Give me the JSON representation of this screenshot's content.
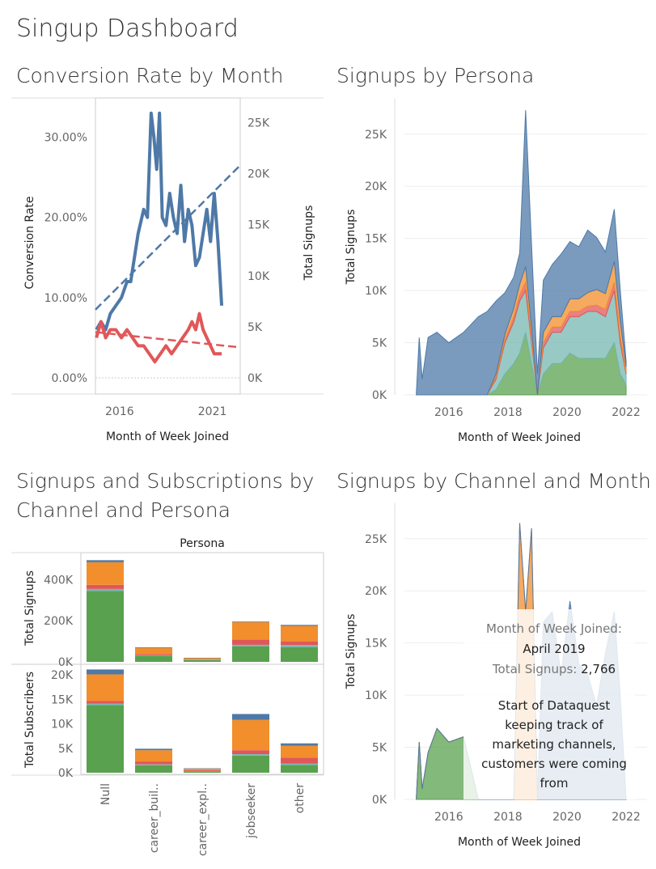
{
  "dashboard": {
    "title": "Singup Dashboard"
  },
  "panels": {
    "conversion": "Conversion Rate by Month",
    "persona": "Signups by Persona",
    "channel_persona": "Signups and Subscriptions by Channel and Persona",
    "channel_month": "Signups by Channel and Month"
  },
  "colors": {
    "blue": "#4e79a7",
    "orange": "#f28e2b",
    "red": "#e15759",
    "teal": "#76b7b2",
    "green": "#59a14f",
    "grey_line": "#bbbbbb"
  },
  "chart_data": [
    {
      "id": "conversion",
      "type": "line",
      "title": "Conversion Rate by Month",
      "xlabel": "Month of Week Joined",
      "ylabel_left": "Conversion Rate",
      "ylabel_right": "Total Signups",
      "x_ticks": [
        "2016",
        "2021"
      ],
      "y_left_ticks": [
        "0.00%",
        "10.00%",
        "20.00%",
        "30.00%"
      ],
      "y_right_ticks": [
        "0K",
        "5K",
        "10K",
        "15K",
        "20K",
        "25K"
      ],
      "ylim_left": [
        0,
        0.35
      ],
      "ylim_right": [
        0,
        27500
      ],
      "xlim": [
        2015.0,
        2022.8
      ],
      "series": [
        {
          "color": "#4e79a7",
          "axis": "left",
          "x": [
            2015.05,
            2015.3,
            2015.55,
            2015.8,
            2016.1,
            2016.4,
            2016.7,
            2016.9,
            2017.1,
            2017.3,
            2017.6,
            2017.8,
            2018.0,
            2018.15,
            2018.3,
            2018.45,
            2018.6,
            2018.8,
            2019.0,
            2019.2,
            2019.4,
            2019.6,
            2019.8,
            2020.0,
            2020.2,
            2020.4,
            2020.6,
            2020.8,
            2021.0,
            2021.2,
            2021.4,
            2021.6,
            2021.8
          ],
          "y": [
            0.06,
            0.07,
            0.06,
            0.08,
            0.09,
            0.1,
            0.12,
            0.12,
            0.15,
            0.18,
            0.21,
            0.2,
            0.33,
            0.3,
            0.26,
            0.33,
            0.2,
            0.19,
            0.23,
            0.2,
            0.18,
            0.24,
            0.17,
            0.21,
            0.19,
            0.14,
            0.15,
            0.18,
            0.21,
            0.17,
            0.23,
            0.17,
            0.09
          ]
        },
        {
          "color": "#e15759",
          "axis": "left",
          "x": [
            2015.05,
            2015.3,
            2015.55,
            2015.8,
            2016.1,
            2016.4,
            2016.7,
            2017.0,
            2017.3,
            2017.6,
            2017.9,
            2018.2,
            2018.5,
            2018.8,
            2019.1,
            2019.4,
            2019.7,
            2020.0,
            2020.2,
            2020.4,
            2020.6,
            2020.8,
            2021.0,
            2021.2,
            2021.4,
            2021.6,
            2021.8
          ],
          "y": [
            0.05,
            0.07,
            0.05,
            0.06,
            0.06,
            0.05,
            0.06,
            0.05,
            0.04,
            0.04,
            0.03,
            0.02,
            0.03,
            0.04,
            0.03,
            0.04,
            0.05,
            0.06,
            0.07,
            0.06,
            0.08,
            0.06,
            0.05,
            0.04,
            0.03,
            0.03,
            0.03
          ]
        }
      ],
      "trend_lines": [
        {
          "color": "#4e79a7",
          "from": [
            2015.0,
            0.085
          ],
          "to": [
            2022.8,
            0.265
          ]
        },
        {
          "color": "#e15759",
          "from": [
            2015.0,
            0.057
          ],
          "to": [
            2022.8,
            0.038
          ]
        }
      ]
    },
    {
      "id": "persona",
      "type": "area",
      "title": "Signups by Persona",
      "xlabel": "Month of Week Joined",
      "ylabel": "Total Signups",
      "x_ticks": [
        "2016",
        "2018",
        "2020",
        "2022"
      ],
      "y_ticks": [
        "0K",
        "5K",
        "10K",
        "15K",
        "20K",
        "25K"
      ],
      "ylim": [
        0,
        27000
      ],
      "xlim": [
        2014.5,
        2022.3
      ],
      "x": [
        2014.9,
        2015.0,
        2015.1,
        2015.3,
        2015.6,
        2016.0,
        2016.5,
        2017.0,
        2017.3,
        2017.6,
        2017.9,
        2018.2,
        2018.4,
        2018.6,
        2018.8,
        2019.0,
        2019.2,
        2019.5,
        2019.8,
        2020.1,
        2020.4,
        2020.7,
        2021.0,
        2021.3,
        2021.6,
        2021.8,
        2022.0
      ],
      "series": [
        {
          "color": "#59a14f",
          "values": [
            0,
            0,
            0,
            0,
            0,
            0,
            0,
            0,
            0,
            500,
            2000,
            3000,
            4000,
            6000,
            3000,
            0,
            2000,
            3000,
            3000,
            4000,
            3500,
            3500,
            3500,
            3500,
            5000,
            2000,
            1000
          ]
        },
        {
          "color": "#76b7b2",
          "values": [
            0,
            0,
            0,
            0,
            0,
            0,
            0,
            0,
            0,
            1000,
            3000,
            4000,
            5000,
            4000,
            2000,
            0,
            2500,
            3000,
            3000,
            3500,
            4000,
            4500,
            4500,
            4000,
            5000,
            3000,
            1000
          ]
        },
        {
          "color": "#e15759",
          "values": [
            0,
            0,
            0,
            0,
            0,
            0,
            0,
            0,
            0,
            200,
            300,
            500,
            600,
            800,
            500,
            0,
            500,
            500,
            500,
            500,
            500,
            500,
            600,
            700,
            800,
            600,
            200
          ]
        },
        {
          "color": "#f28e2b",
          "values": [
            0,
            0,
            0,
            0,
            0,
            0,
            0,
            0,
            0,
            300,
            500,
            800,
            1000,
            1500,
            900,
            0,
            1000,
            1000,
            1000,
            1200,
            1200,
            1300,
            1500,
            1500,
            2000,
            1500,
            500
          ]
        },
        {
          "color": "#4e79a7",
          "values": [
            0,
            5500,
            1500,
            5500,
            6000,
            5000,
            6000,
            7500,
            8000,
            7000,
            4000,
            3000,
            3000,
            15000,
            8000,
            2000,
            5000,
            5000,
            6000,
            5500,
            5000,
            6000,
            5000,
            4000,
            5000,
            3000,
            500
          ]
        }
      ]
    },
    {
      "id": "channel_persona",
      "type": "bar",
      "title": "Signups and Subscriptions by Channel and Persona",
      "column_header": "Persona",
      "categories": [
        "Null",
        "career_buil..",
        "career_expl..",
        "jobseeker",
        "other"
      ],
      "rows": [
        {
          "ylabel": "Total Signups",
          "y_ticks": [
            "0K",
            "200K",
            "400K"
          ],
          "ylim": [
            0,
            520000
          ],
          "stack_colors": [
            "#59a14f",
            "#76b7b2",
            "#e15759",
            "#f28e2b",
            "#4e79a7"
          ],
          "stacks": [
            [
              345000,
              10000,
              20000,
              110000,
              10000
            ],
            [
              30000,
              2000,
              6000,
              30000,
              3000
            ],
            [
              8000,
              1000,
              2000,
              7000,
              2000
            ],
            [
              75000,
              8000,
              25000,
              85000,
              3000
            ],
            [
              72000,
              10000,
              18000,
              75000,
              5000
            ]
          ]
        },
        {
          "ylabel": "Total Subscribers",
          "y_ticks": [
            "0K",
            "5K",
            "10K",
            "15K",
            "20K"
          ],
          "ylim": [
            0,
            21500
          ],
          "stack_colors": [
            "#59a14f",
            "#76b7b2",
            "#e15759",
            "#f28e2b",
            "#4e79a7"
          ],
          "stacks": [
            [
              13800,
              300,
              600,
              5400,
              1000
            ],
            [
              1500,
              200,
              600,
              2300,
              300
            ],
            [
              300,
              50,
              150,
              300,
              100
            ],
            [
              3500,
              300,
              800,
              6200,
              1200
            ],
            [
              1600,
              300,
              1200,
              2400,
              500
            ]
          ]
        }
      ]
    },
    {
      "id": "channel_month",
      "type": "area",
      "title": "Signups by Channel and Month",
      "xlabel": "Month of Week Joined",
      "ylabel": "Total Signups",
      "x_ticks": [
        "2016",
        "2018",
        "2020",
        "2022"
      ],
      "y_ticks": [
        "0K",
        "5K",
        "10K",
        "15K",
        "20K",
        "25K"
      ],
      "ylim": [
        0,
        27000
      ],
      "xlim": [
        2014.5,
        2022.3
      ],
      "x": [
        2014.9,
        2015.0,
        2015.1,
        2015.3,
        2015.6,
        2016.0,
        2016.5,
        2017.0,
        2017.3,
        2017.6,
        2017.9,
        2018.2,
        2018.4,
        2018.6,
        2018.8,
        2019.0,
        2019.2,
        2019.5,
        2019.8,
        2020.1,
        2020.4,
        2020.7,
        2021.0,
        2021.3,
        2021.6,
        2021.8,
        2022.0
      ],
      "series": [
        {
          "color": "#59a14f",
          "values": [
            0,
            5500,
            1000,
            4500,
            6800,
            5500,
            6000,
            0,
            0,
            0,
            0,
            0,
            0,
            0,
            0,
            0,
            0,
            0,
            0,
            0,
            0,
            0,
            0,
            0,
            0,
            0,
            0
          ]
        },
        {
          "color": "#f28e2b",
          "values": [
            0,
            0,
            0,
            0,
            0,
            0,
            0,
            0,
            0,
            0,
            0,
            0,
            26500,
            18000,
            26000,
            0,
            0,
            0,
            0,
            0,
            0,
            0,
            0,
            0,
            0,
            0,
            0
          ]
        },
        {
          "color": "#4e79a7",
          "values": [
            0,
            0,
            0,
            0,
            0,
            0,
            0,
            0,
            0,
            0,
            0,
            0,
            0,
            0,
            0,
            0,
            17000,
            18000,
            12000,
            19000,
            13000,
            12000,
            9000,
            14000,
            18000,
            10000,
            0
          ]
        }
      ],
      "tooltip": {
        "line1_label": "Month of Week Joined:",
        "line1_value": "April 2019",
        "line2_label": "Total Signups:",
        "line2_value": "2,766",
        "note": [
          "Start of Dataquest",
          "keeping track of",
          "marketing channels,",
          "customers were coming",
          "from"
        ]
      }
    }
  ]
}
